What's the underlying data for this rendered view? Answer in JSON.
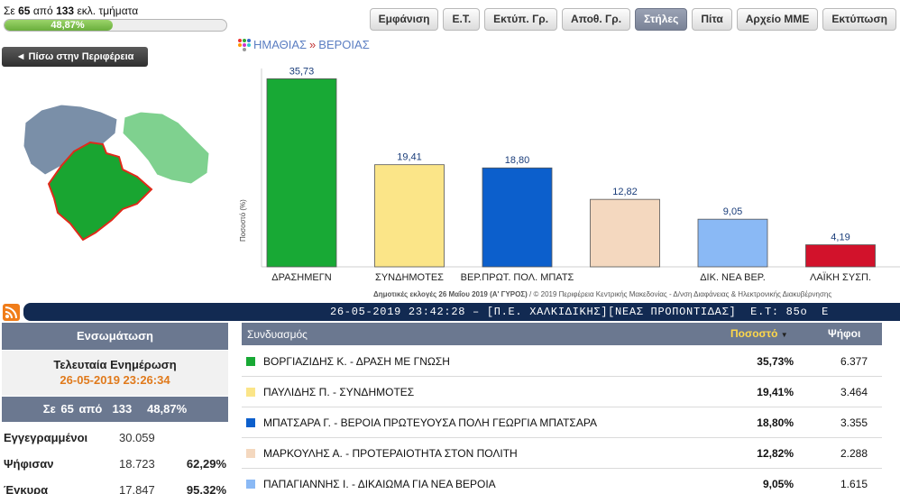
{
  "status": {
    "prefix": "Σε",
    "counted": "65",
    "mid": "από",
    "total": "133",
    "suffix": "εκλ. τμήματα",
    "progress_label": "48,87%",
    "progress_value": 0.4887
  },
  "toolbar": {
    "buttons": [
      "Εμφάνιση",
      "Ε.Τ.",
      "Εκτύπ. Γρ.",
      "Αποθ. Γρ.",
      "Στήλες",
      "Πίτα",
      "Αρχείο ΜΜΕ",
      "Εκτύπωση"
    ],
    "active": "Στήλες"
  },
  "back_button": "◄ Πίσω στην Περιφέρεια",
  "breadcrumb": {
    "region": "ΗΜΑΘΙΑΣ",
    "separator": "»",
    "municipality": "ΒΕΡΟΙΑΣ"
  },
  "map": {
    "colors": {
      "selected": "#19a531",
      "selected_border": "#e02a1a",
      "neighbor_green": "#7fd18f",
      "neighbor_blue": "#7a8fa8"
    }
  },
  "chart_data": {
    "type": "bar",
    "categories": [
      "ΔΡΑΣΗΜΕΓΝ",
      "ΣΥΝΔΗΜΟΤΕΣ",
      "ΒΕΡ.ΠΡΩΤ. ΠΟΛ. ΜΠΑΤΣ",
      "",
      "ΔΙΚ. ΝΕΑ ΒΕΡ.",
      "ΛΑΪΚΗ ΣΥΣΠ."
    ],
    "values": [
      35.73,
      19.41,
      18.8,
      12.82,
      9.05,
      4.19
    ],
    "data_labels": [
      "35,73",
      "19,41",
      "18,80",
      "12,82",
      "9,05",
      "4,19"
    ],
    "colors": [
      "#18a935",
      "#fbe588",
      "#0c5fcc",
      "#f4d8bf",
      "#8ab9f5",
      "#d2122b"
    ],
    "ylabel": "Ποσοστό (%)",
    "ylim": [
      0,
      37
    ],
    "grid": false,
    "footer_bold": "Δημοτικές εκλογές 26 Μαΐου 2019 (Α' ΓΥΡΟΣ)",
    "footer_rest": " / © 2019 Περιφέρεια Κεντρικής Μακεδονίας - Δ/νση Διαφάνειας & Ηλεκτρονικής Διακυβέρνησης"
  },
  "ticker": {
    "text": "26-05-2019 23:42:28 – [Π.Ε. ΧΑΛΚΙΔΙΚΗΣ][ΝΕΑΣ ΠΡΟΠΟΝΤΙΔΑΣ]  Ε.Τ: 85ο  Ε"
  },
  "left_panel": {
    "title": "Ενσωμάτωση",
    "updated_label": "Τελευταία Ενημέρωση",
    "updated_time": "26-05-2019 23:26:34",
    "count_line": "Σε 65 από  133   48,87%",
    "rows": [
      {
        "label": "Εγγεγραμμένοι",
        "value": "30.059",
        "pct": ""
      },
      {
        "label": "Ψήφισαν",
        "value": "18.723",
        "pct": "62,29%"
      },
      {
        "label": "Έγκυρα",
        "value": "17.847",
        "pct": "95,32%"
      }
    ]
  },
  "results": {
    "headers": {
      "name": "Συνδυασμός",
      "percent": "Ποσοστό",
      "votes": "Ψήφοι"
    },
    "rows": [
      {
        "name": "ΒΟΡΓΙΑΖΙΔΗΣ Κ. - ΔΡΑΣΗ ΜΕ ΓΝΩΣΗ",
        "percent": "35,73%",
        "votes": "6.377",
        "color": "#18a935"
      },
      {
        "name": "ΠΑΥΛΙΔΗΣ Π. - ΣΥΝΔΗΜΟΤΕΣ",
        "percent": "19,41%",
        "votes": "3.464",
        "color": "#fbe588"
      },
      {
        "name": "ΜΠΑΤΣΑΡΑ Γ. - ΒΕΡΟΙΑ ΠΡΩΤΕΥΟΥΣΑ ΠΟΛΗ ΓΕΩΡΓΙΑ ΜΠΑΤΣΑΡΑ",
        "percent": "18,80%",
        "votes": "3.355",
        "color": "#0c5fcc"
      },
      {
        "name": "ΜΑΡΚΟΥΛΗΣ Α. - ΠΡΟΤΕΡΑΙΟΤΗΤΑ ΣΤΟΝ ΠΟΛΙΤΗ",
        "percent": "12,82%",
        "votes": "2.288",
        "color": "#f4d8bf"
      },
      {
        "name": "ΠΑΠΑΓΙΑΝΝΗΣ Ι. - ΔΙΚΑΙΩΜΑ ΓΙΑ ΝΕΑ ΒΕΡΟΙΑ",
        "percent": "9,05%",
        "votes": "1.615",
        "color": "#8ab9f5"
      }
    ]
  }
}
